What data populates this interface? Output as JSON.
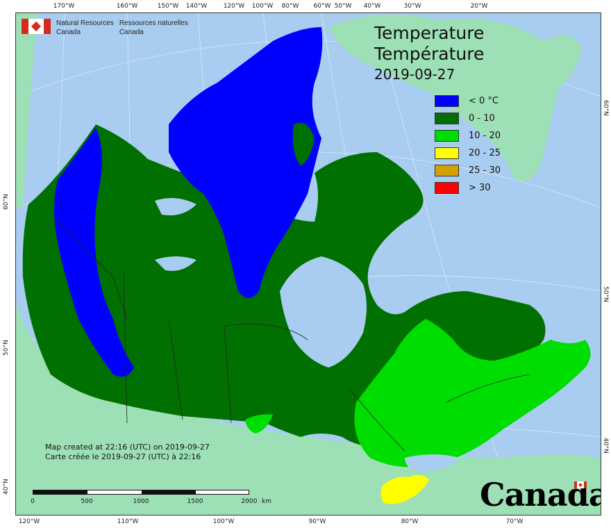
{
  "agency": {
    "name_en_line1": "Natural Resources",
    "name_en_line2": "Canada",
    "name_fr_line1": "Ressources naturelles",
    "name_fr_line2": "Canada"
  },
  "title": {
    "en": "Temperature",
    "fr": "Température",
    "date": "2019-09-27"
  },
  "legend": [
    {
      "label": "< 0 °C",
      "color": "#0000ff"
    },
    {
      "label": "0 - 10",
      "color": "#007000"
    },
    {
      "label": "10 - 20",
      "color": "#00dd00"
    },
    {
      "label": "20 - 25",
      "color": "#ffff00"
    },
    {
      "label": "25 - 30",
      "color": "#d4a000"
    },
    {
      "label": "> 30",
      "color": "#ff0000"
    }
  ],
  "colors": {
    "ocean": "#a9cdf0",
    "land_outside": "#9ee0b6",
    "lake": "#a9cdf0",
    "border": "#222222"
  },
  "credit": {
    "en": "Map created at 22:16 (UTC) on 2019-09-27",
    "fr": "Carte créée le 2019-09-27 (UTC) à 22:16"
  },
  "scale_bar": {
    "labels": [
      "0",
      "500",
      "1000",
      "1500",
      "2000"
    ],
    "unit": "km"
  },
  "wordmark": "Canada",
  "graticule": {
    "top": [
      "170°W",
      "160°W",
      "150°W",
      "140°W",
      "120°W",
      "100°W",
      "80°W",
      "60°W",
      "50°W",
      "40°W",
      "30°W",
      "20°W"
    ],
    "bottom": [
      "120°W",
      "110°W",
      "100°W",
      "90°W",
      "80°W",
      "70°W"
    ],
    "left": [
      "40°N",
      "50°N",
      "60°N"
    ],
    "right": [
      "40°N",
      "50°N",
      "60°N"
    ]
  }
}
